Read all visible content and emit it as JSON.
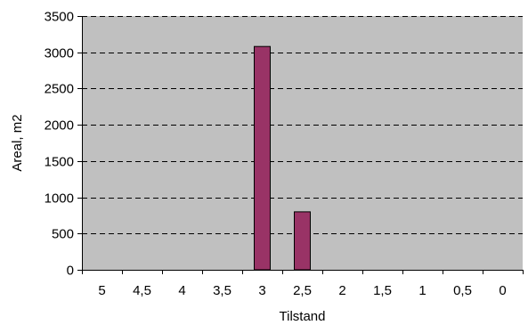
{
  "chart_data": {
    "type": "bar",
    "categories": [
      "5",
      "4,5",
      "4",
      "3,5",
      "3",
      "2,5",
      "2",
      "1,5",
      "1",
      "0,5",
      "0"
    ],
    "values": [
      0,
      0,
      0,
      0,
      3080,
      800,
      0,
      0,
      0,
      0,
      0
    ],
    "xlabel": "Tilstand",
    "ylabel": "Areal, m2",
    "ylim": [
      0,
      3500
    ],
    "yticks": [
      0,
      500,
      1000,
      1500,
      2000,
      2500,
      3000,
      3500
    ],
    "grid": "horizontal dashed",
    "colors": {
      "plot_background": "#c0c0c0",
      "bar_fill": "#993366",
      "bar_stroke": "#000000",
      "gridline": "#000000"
    }
  }
}
